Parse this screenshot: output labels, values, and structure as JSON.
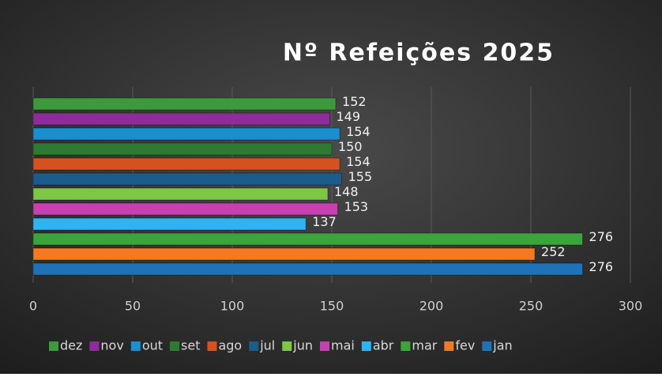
{
  "chart_data": {
    "type": "bar",
    "orientation": "horizontal",
    "title": "Nº Refeições 2025",
    "series": [
      {
        "name": "dez",
        "color": "#3c9a3c",
        "values": [
          152
        ]
      },
      {
        "name": "nov",
        "color": "#8e2c9c",
        "values": [
          149
        ]
      },
      {
        "name": "out",
        "color": "#1a8fd0",
        "values": [
          154
        ]
      },
      {
        "name": "set",
        "color": "#2f7a33",
        "values": [
          150
        ]
      },
      {
        "name": "ago",
        "color": "#d5521f",
        "values": [
          154
        ]
      },
      {
        "name": "jul",
        "color": "#1b5c8c",
        "values": [
          155
        ]
      },
      {
        "name": "jun",
        "color": "#7cc744",
        "values": [
          148
        ]
      },
      {
        "name": "mai",
        "color": "#c540b2",
        "values": [
          153
        ]
      },
      {
        "name": "abr",
        "color": "#2cb5f2",
        "values": [
          137
        ]
      },
      {
        "name": "mar",
        "color": "#3ba53b",
        "values": [
          276
        ]
      },
      {
        "name": "fev",
        "color": "#f37a22",
        "values": [
          252
        ]
      },
      {
        "name": "jan",
        "color": "#1f72b8",
        "values": [
          276
        ]
      }
    ],
    "xlim": [
      0,
      300
    ],
    "xticks": [
      0,
      50,
      100,
      150,
      200,
      250,
      300
    ],
    "grid": true,
    "legend": "bottom"
  }
}
